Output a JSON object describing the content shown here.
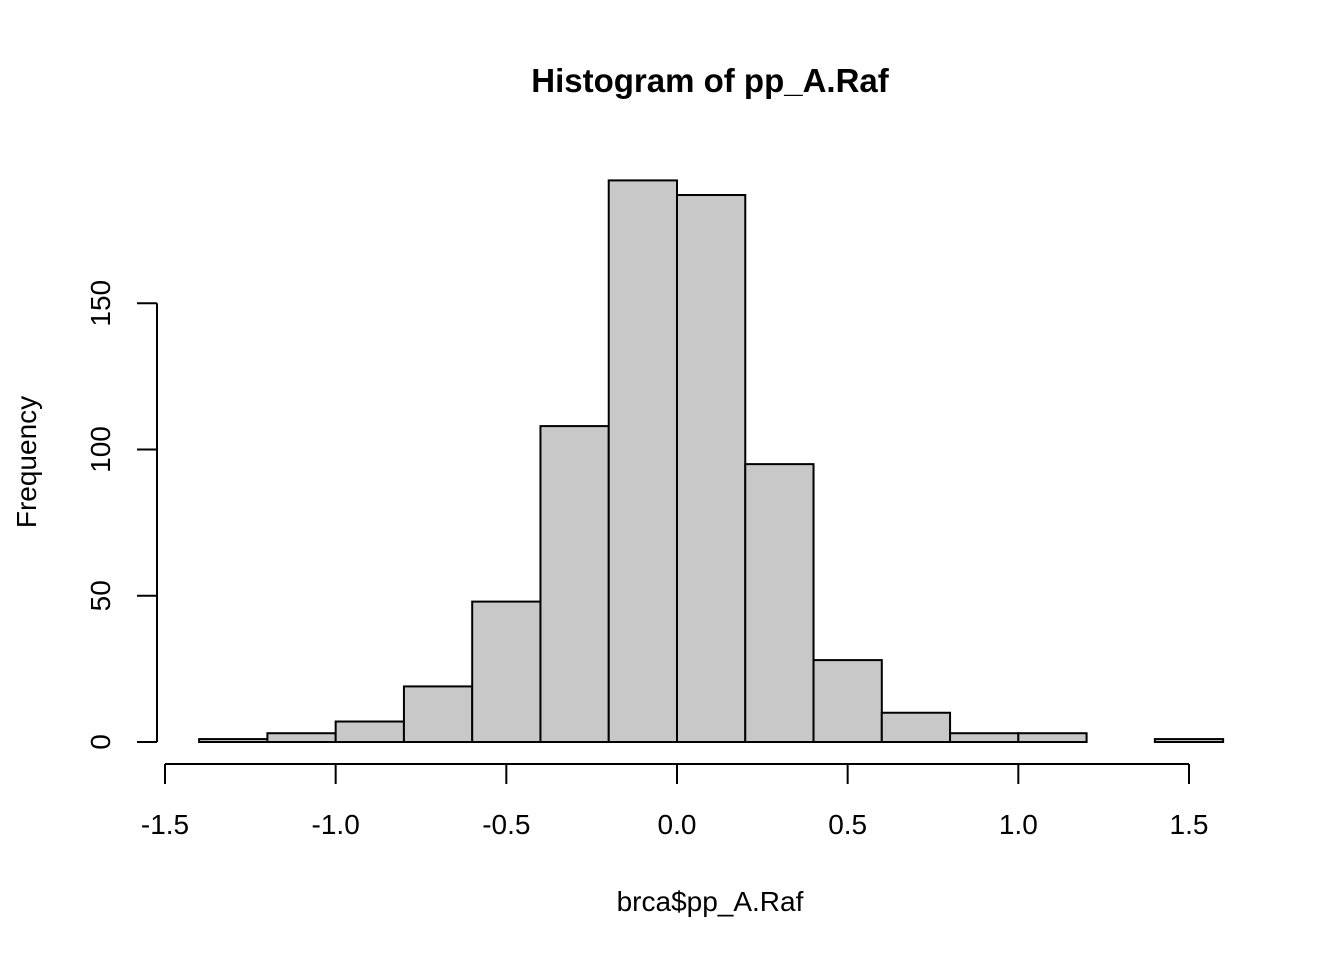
{
  "chart_data": {
    "type": "bar",
    "title": "Histogram of pp_A.Raf",
    "xlabel": "brca$pp_A.Raf",
    "ylabel": "Frequency",
    "bin_edges": [
      -1.4,
      -1.2,
      -1.0,
      -0.8,
      -0.6,
      -0.4,
      -0.2,
      0.0,
      0.2,
      0.4,
      0.6,
      0.8,
      1.0,
      1.2,
      1.4,
      1.6
    ],
    "counts": [
      1,
      3,
      7,
      19,
      48,
      108,
      192,
      187,
      95,
      28,
      10,
      3,
      3,
      0,
      1
    ],
    "x_ticks": [
      -1.5,
      -1.0,
      -0.5,
      0.0,
      0.5,
      1.0,
      1.5
    ],
    "x_tick_labels": [
      "-1.5",
      "-1.0",
      "-0.5",
      "0.0",
      "0.5",
      "1.0",
      "1.5"
    ],
    "y_ticks": [
      0,
      50,
      100,
      150
    ],
    "y_tick_labels": [
      "0",
      "50",
      "100",
      "150"
    ],
    "xlim": [
      -1.5,
      1.6
    ],
    "ylim": [
      0,
      192
    ],
    "bar_fill": "#c8c8c8",
    "grid": false
  }
}
